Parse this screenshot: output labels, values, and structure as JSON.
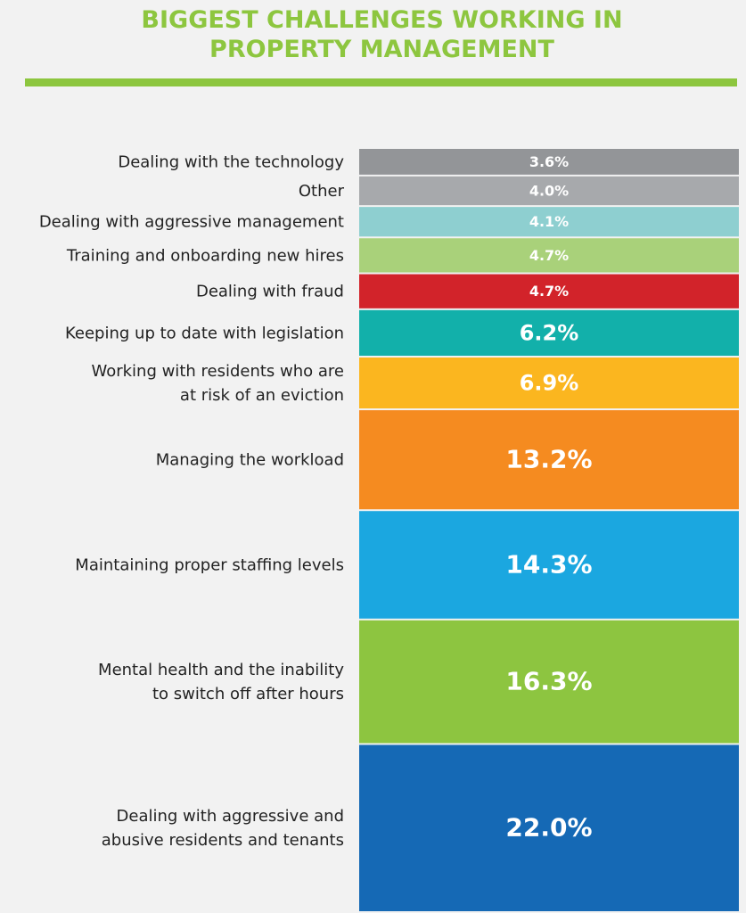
{
  "chart_data": {
    "type": "stacked-bar",
    "title": "BIGGEST CHALLENGES WORKING IN\nPROPERTY MANAGEMENT",
    "categories": [
      "Dealing with the technology",
      "Other",
      "Dealing with aggressive management",
      "Training and onboarding new hires",
      "Dealing with fraud",
      "Keeping up to date with legislation",
      "Working with residents who are\nat risk of an eviction",
      "Managing the workload",
      "Maintaining proper staffing levels",
      "Mental health and the inability\nto switch off after hours",
      "Dealing with aggressive and\nabusive residents and tenants"
    ],
    "values": [
      3.6,
      4.0,
      4.1,
      4.7,
      4.7,
      6.2,
      6.9,
      13.2,
      14.3,
      16.3,
      22.0
    ],
    "value_labels": [
      "3.6%",
      "4.0%",
      "4.1%",
      "4.7%",
      "4.7%",
      "6.2%",
      "6.9%",
      "13.2%",
      "14.3%",
      "16.3%",
      "22.0%"
    ],
    "colors": [
      "#939598",
      "#a7a9ac",
      "#8ecfd0",
      "#a9d17a",
      "#d2232a",
      "#12b0aa",
      "#fbb61f",
      "#f58b20",
      "#1ba7e0",
      "#8dc540",
      "#1569b5"
    ],
    "title_color": "#8dc63f"
  }
}
